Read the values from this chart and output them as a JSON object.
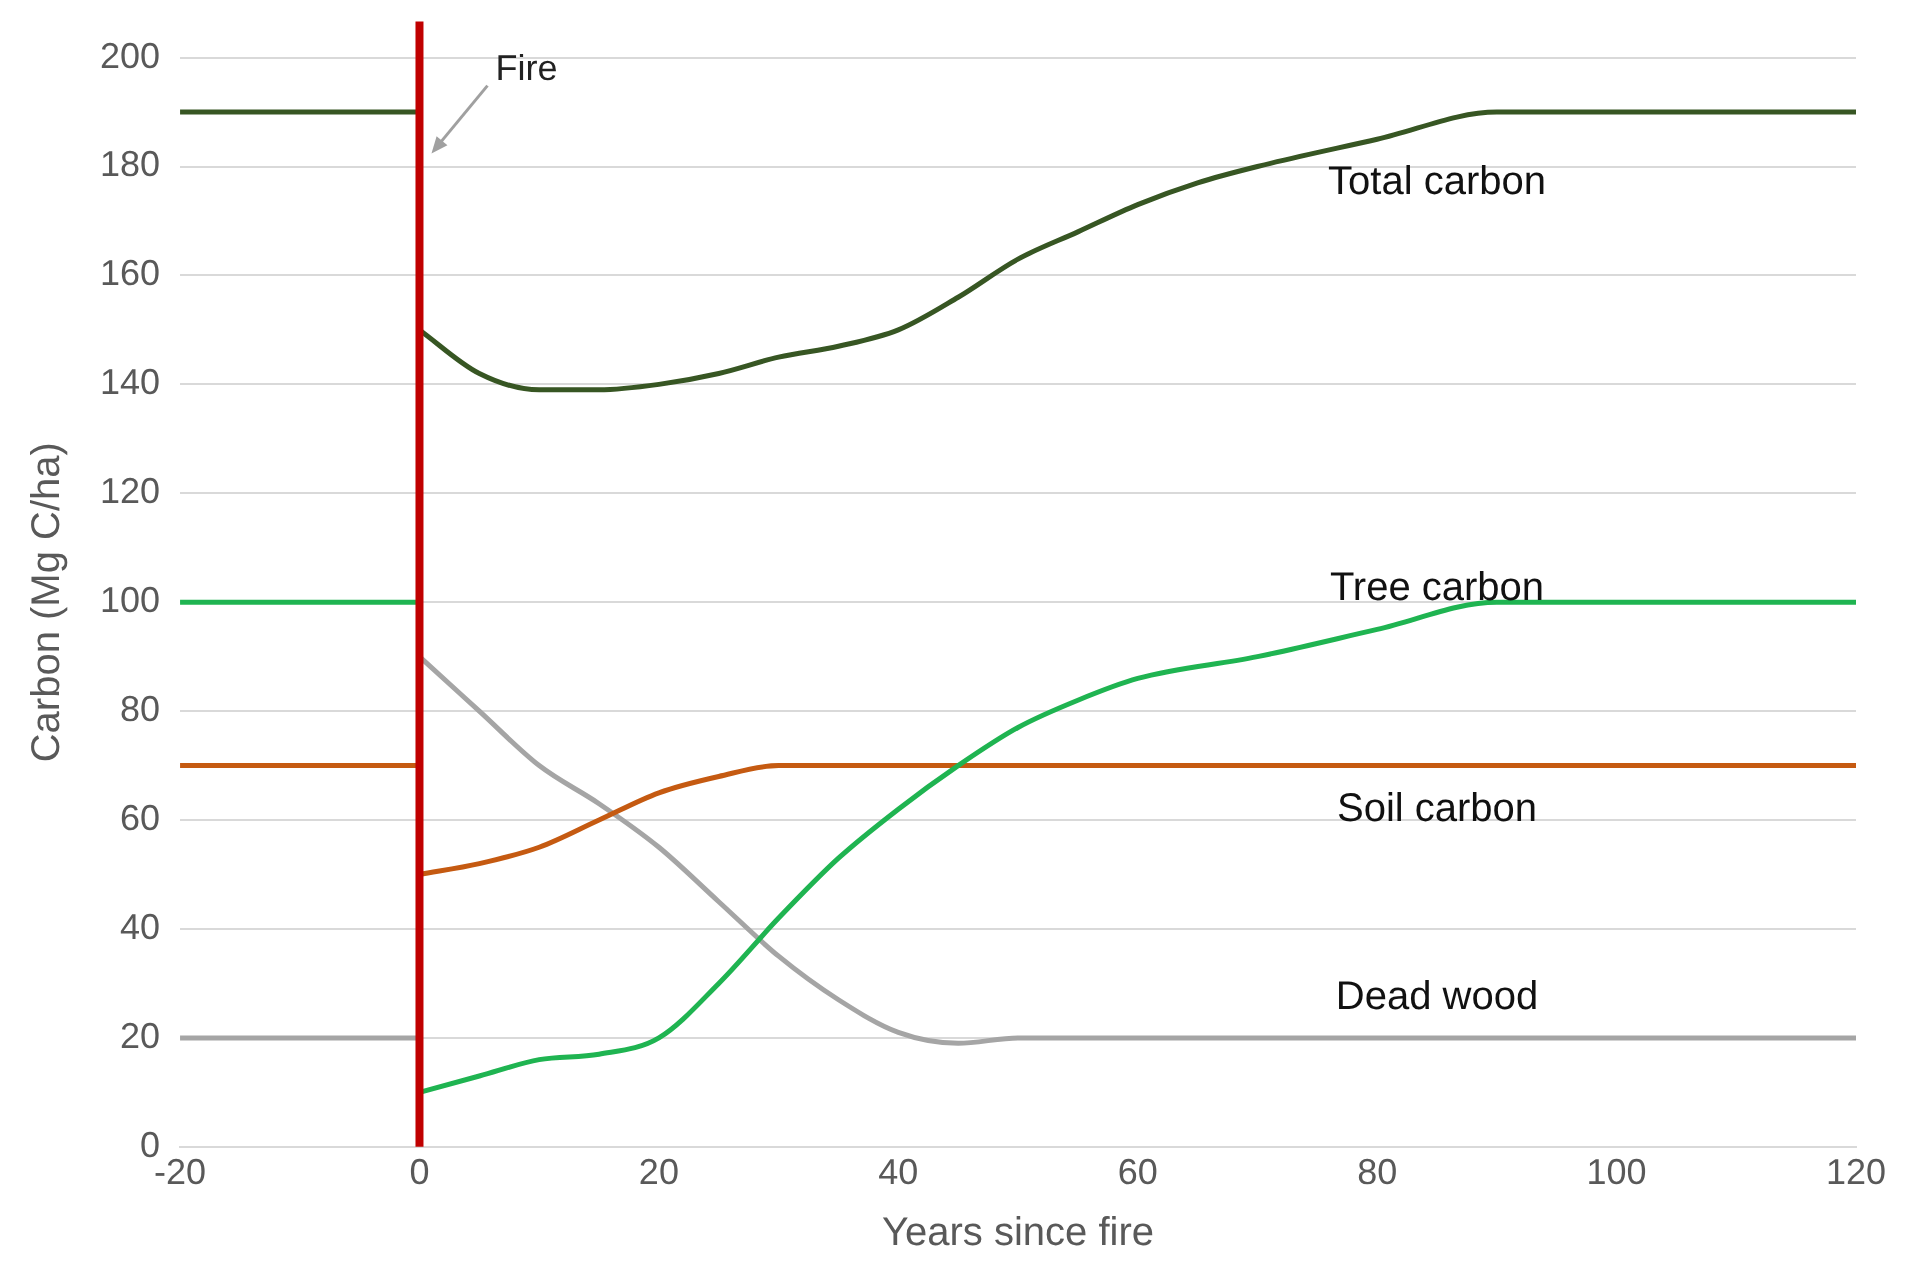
{
  "chart_data": {
    "type": "line",
    "xlabel": "Years since fire",
    "ylabel": "Carbon (Mg C/ha)",
    "xlim": [
      -20,
      120
    ],
    "xticks": [
      -20,
      0,
      20,
      40,
      60,
      80,
      100,
      120
    ],
    "ylim": [
      0,
      200
    ],
    "yticks": [
      0,
      20,
      40,
      60,
      80,
      100,
      120,
      140,
      160,
      180,
      200
    ],
    "grid": "y",
    "legend": false,
    "ref_lines": [
      {
        "axis": "x",
        "value": 0,
        "label": "Fire",
        "color": "#c00000"
      }
    ],
    "series": [
      {
        "color": "#375623",
        "x": [
          -20,
          0
        ],
        "values": [
          190,
          190
        ]
      },
      {
        "name": "Total carbon",
        "color": "#375623",
        "x": [
          0,
          5,
          10,
          15,
          20,
          25,
          30,
          35,
          40,
          45,
          50,
          55,
          60,
          65,
          70,
          80,
          90,
          100,
          120
        ],
        "values": [
          150,
          142,
          139,
          139,
          140,
          142,
          145,
          147,
          150,
          156,
          163,
          168,
          173,
          177,
          180,
          185,
          190,
          190,
          190
        ]
      },
      {
        "color": "#1fb451",
        "x": [
          -20,
          0
        ],
        "values": [
          100,
          100
        ]
      },
      {
        "name": "Tree carbon",
        "color": "#1fb451",
        "x": [
          0,
          5,
          10,
          15,
          20,
          25,
          30,
          35,
          40,
          45,
          50,
          55,
          60,
          70,
          80,
          90,
          100,
          120
        ],
        "values": [
          10,
          13,
          16,
          17,
          20,
          30,
          42,
          53,
          62,
          70,
          77,
          82,
          86,
          90,
          95,
          100,
          100,
          100
        ]
      },
      {
        "color": "#c55a11",
        "x": [
          -20,
          0
        ],
        "values": [
          70,
          70
        ]
      },
      {
        "name": "Soil carbon",
        "color": "#c55a11",
        "x": [
          0,
          5,
          10,
          15,
          20,
          25,
          30,
          35,
          120
        ],
        "values": [
          50,
          52,
          55,
          60,
          65,
          68,
          70,
          70,
          70
        ]
      },
      {
        "color": "#a5a5a5",
        "x": [
          -20,
          0
        ],
        "values": [
          20,
          20
        ]
      },
      {
        "name": "Dead wood",
        "color": "#a5a5a5",
        "x": [
          0,
          5,
          10,
          15,
          20,
          25,
          30,
          35,
          40,
          45,
          50,
          120
        ],
        "values": [
          90,
          80,
          70,
          63,
          55,
          45,
          35,
          27,
          21,
          19,
          20,
          20
        ]
      }
    ]
  }
}
